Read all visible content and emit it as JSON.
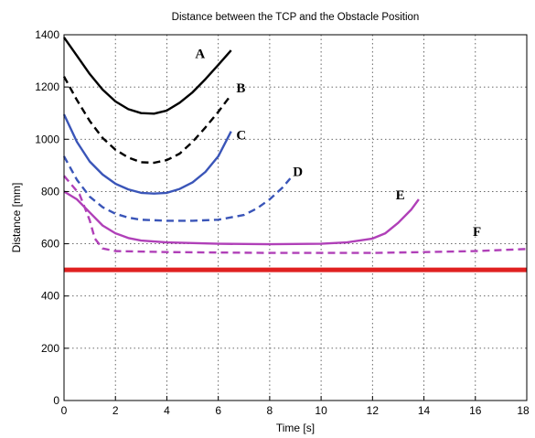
{
  "chart_data": {
    "type": "line",
    "title": "Distance between the TCP and the Obstacle Position",
    "xlabel": "Time [s]",
    "ylabel": "Distance [mm]",
    "xlim": [
      0,
      18
    ],
    "ylim": [
      0,
      1400
    ],
    "xticks": [
      "0",
      "2",
      "4",
      "6",
      "8",
      "10",
      "12",
      "14",
      "16",
      "18"
    ],
    "yticks": [
      "0",
      "200",
      "400",
      "600",
      "800",
      "1000",
      "1200",
      "1400"
    ],
    "grid": true,
    "series": [
      {
        "name": "A",
        "color": "#000000",
        "dash": false,
        "label_at": [
          5.1,
          1310
        ],
        "points": [
          [
            0,
            1390
          ],
          [
            0.5,
            1320
          ],
          [
            1,
            1250
          ],
          [
            1.5,
            1190
          ],
          [
            2,
            1145
          ],
          [
            2.5,
            1115
          ],
          [
            3,
            1100
          ],
          [
            3.5,
            1098
          ],
          [
            4,
            1110
          ],
          [
            4.5,
            1140
          ],
          [
            5,
            1180
          ],
          [
            5.5,
            1230
          ],
          [
            6,
            1285
          ],
          [
            6.5,
            1340
          ]
        ]
      },
      {
        "name": "B",
        "color": "#000000",
        "dash": true,
        "label_at": [
          6.7,
          1180
        ],
        "points": [
          [
            0,
            1240
          ],
          [
            0.5,
            1150
          ],
          [
            1,
            1070
          ],
          [
            1.5,
            1005
          ],
          [
            2,
            960
          ],
          [
            2.5,
            930
          ],
          [
            3,
            912
          ],
          [
            3.5,
            910
          ],
          [
            4,
            920
          ],
          [
            4.5,
            945
          ],
          [
            5,
            990
          ],
          [
            5.5,
            1045
          ],
          [
            6,
            1105
          ],
          [
            6.5,
            1170
          ]
        ]
      },
      {
        "name": "C",
        "color": "#3a55b8",
        "dash": false,
        "label_at": [
          6.7,
          1000
        ],
        "points": [
          [
            0,
            1095
          ],
          [
            0.5,
            990
          ],
          [
            1,
            915
          ],
          [
            1.5,
            865
          ],
          [
            2,
            830
          ],
          [
            2.5,
            808
          ],
          [
            3,
            795
          ],
          [
            3.5,
            792
          ],
          [
            4,
            795
          ],
          [
            4.5,
            810
          ],
          [
            5,
            835
          ],
          [
            5.5,
            875
          ],
          [
            6,
            935
          ],
          [
            6.5,
            1030
          ]
        ]
      },
      {
        "name": "D",
        "color": "#3a55b8",
        "dash": true,
        "label_at": [
          8.9,
          860
        ],
        "points": [
          [
            0,
            935
          ],
          [
            0.5,
            845
          ],
          [
            1,
            780
          ],
          [
            1.5,
            740
          ],
          [
            2,
            715
          ],
          [
            2.5,
            700
          ],
          [
            3,
            692
          ],
          [
            4,
            688
          ],
          [
            5,
            688
          ],
          [
            6,
            692
          ],
          [
            7,
            710
          ],
          [
            7.5,
            735
          ],
          [
            8,
            770
          ],
          [
            8.5,
            815
          ],
          [
            8.8,
            850
          ]
        ]
      },
      {
        "name": "E",
        "color": "#b040b8",
        "dash": false,
        "label_at": [
          12.9,
          770
        ],
        "points": [
          [
            0,
            800
          ],
          [
            0.5,
            770
          ],
          [
            1,
            720
          ],
          [
            1.5,
            670
          ],
          [
            2,
            640
          ],
          [
            2.5,
            622
          ],
          [
            3,
            612
          ],
          [
            4,
            605
          ],
          [
            6,
            600
          ],
          [
            8,
            598
          ],
          [
            10,
            600
          ],
          [
            11,
            605
          ],
          [
            12,
            620
          ],
          [
            12.5,
            640
          ],
          [
            13,
            680
          ],
          [
            13.5,
            730
          ],
          [
            13.8,
            770
          ]
        ]
      },
      {
        "name": "F",
        "color": "#b040b8",
        "dash": true,
        "label_at": [
          15.9,
          630
        ],
        "points": [
          [
            0,
            860
          ],
          [
            0.6,
            790
          ],
          [
            1,
            690
          ],
          [
            1.2,
            620
          ],
          [
            1.5,
            582
          ],
          [
            2,
            572
          ],
          [
            4,
            568
          ],
          [
            8,
            565
          ],
          [
            12,
            565
          ],
          [
            14,
            568
          ],
          [
            16,
            572
          ],
          [
            18,
            580
          ]
        ]
      },
      {
        "name": "",
        "color": "#e02020",
        "dash": false,
        "thick": true,
        "points": [
          [
            0,
            500
          ],
          [
            18,
            500
          ]
        ]
      }
    ]
  }
}
